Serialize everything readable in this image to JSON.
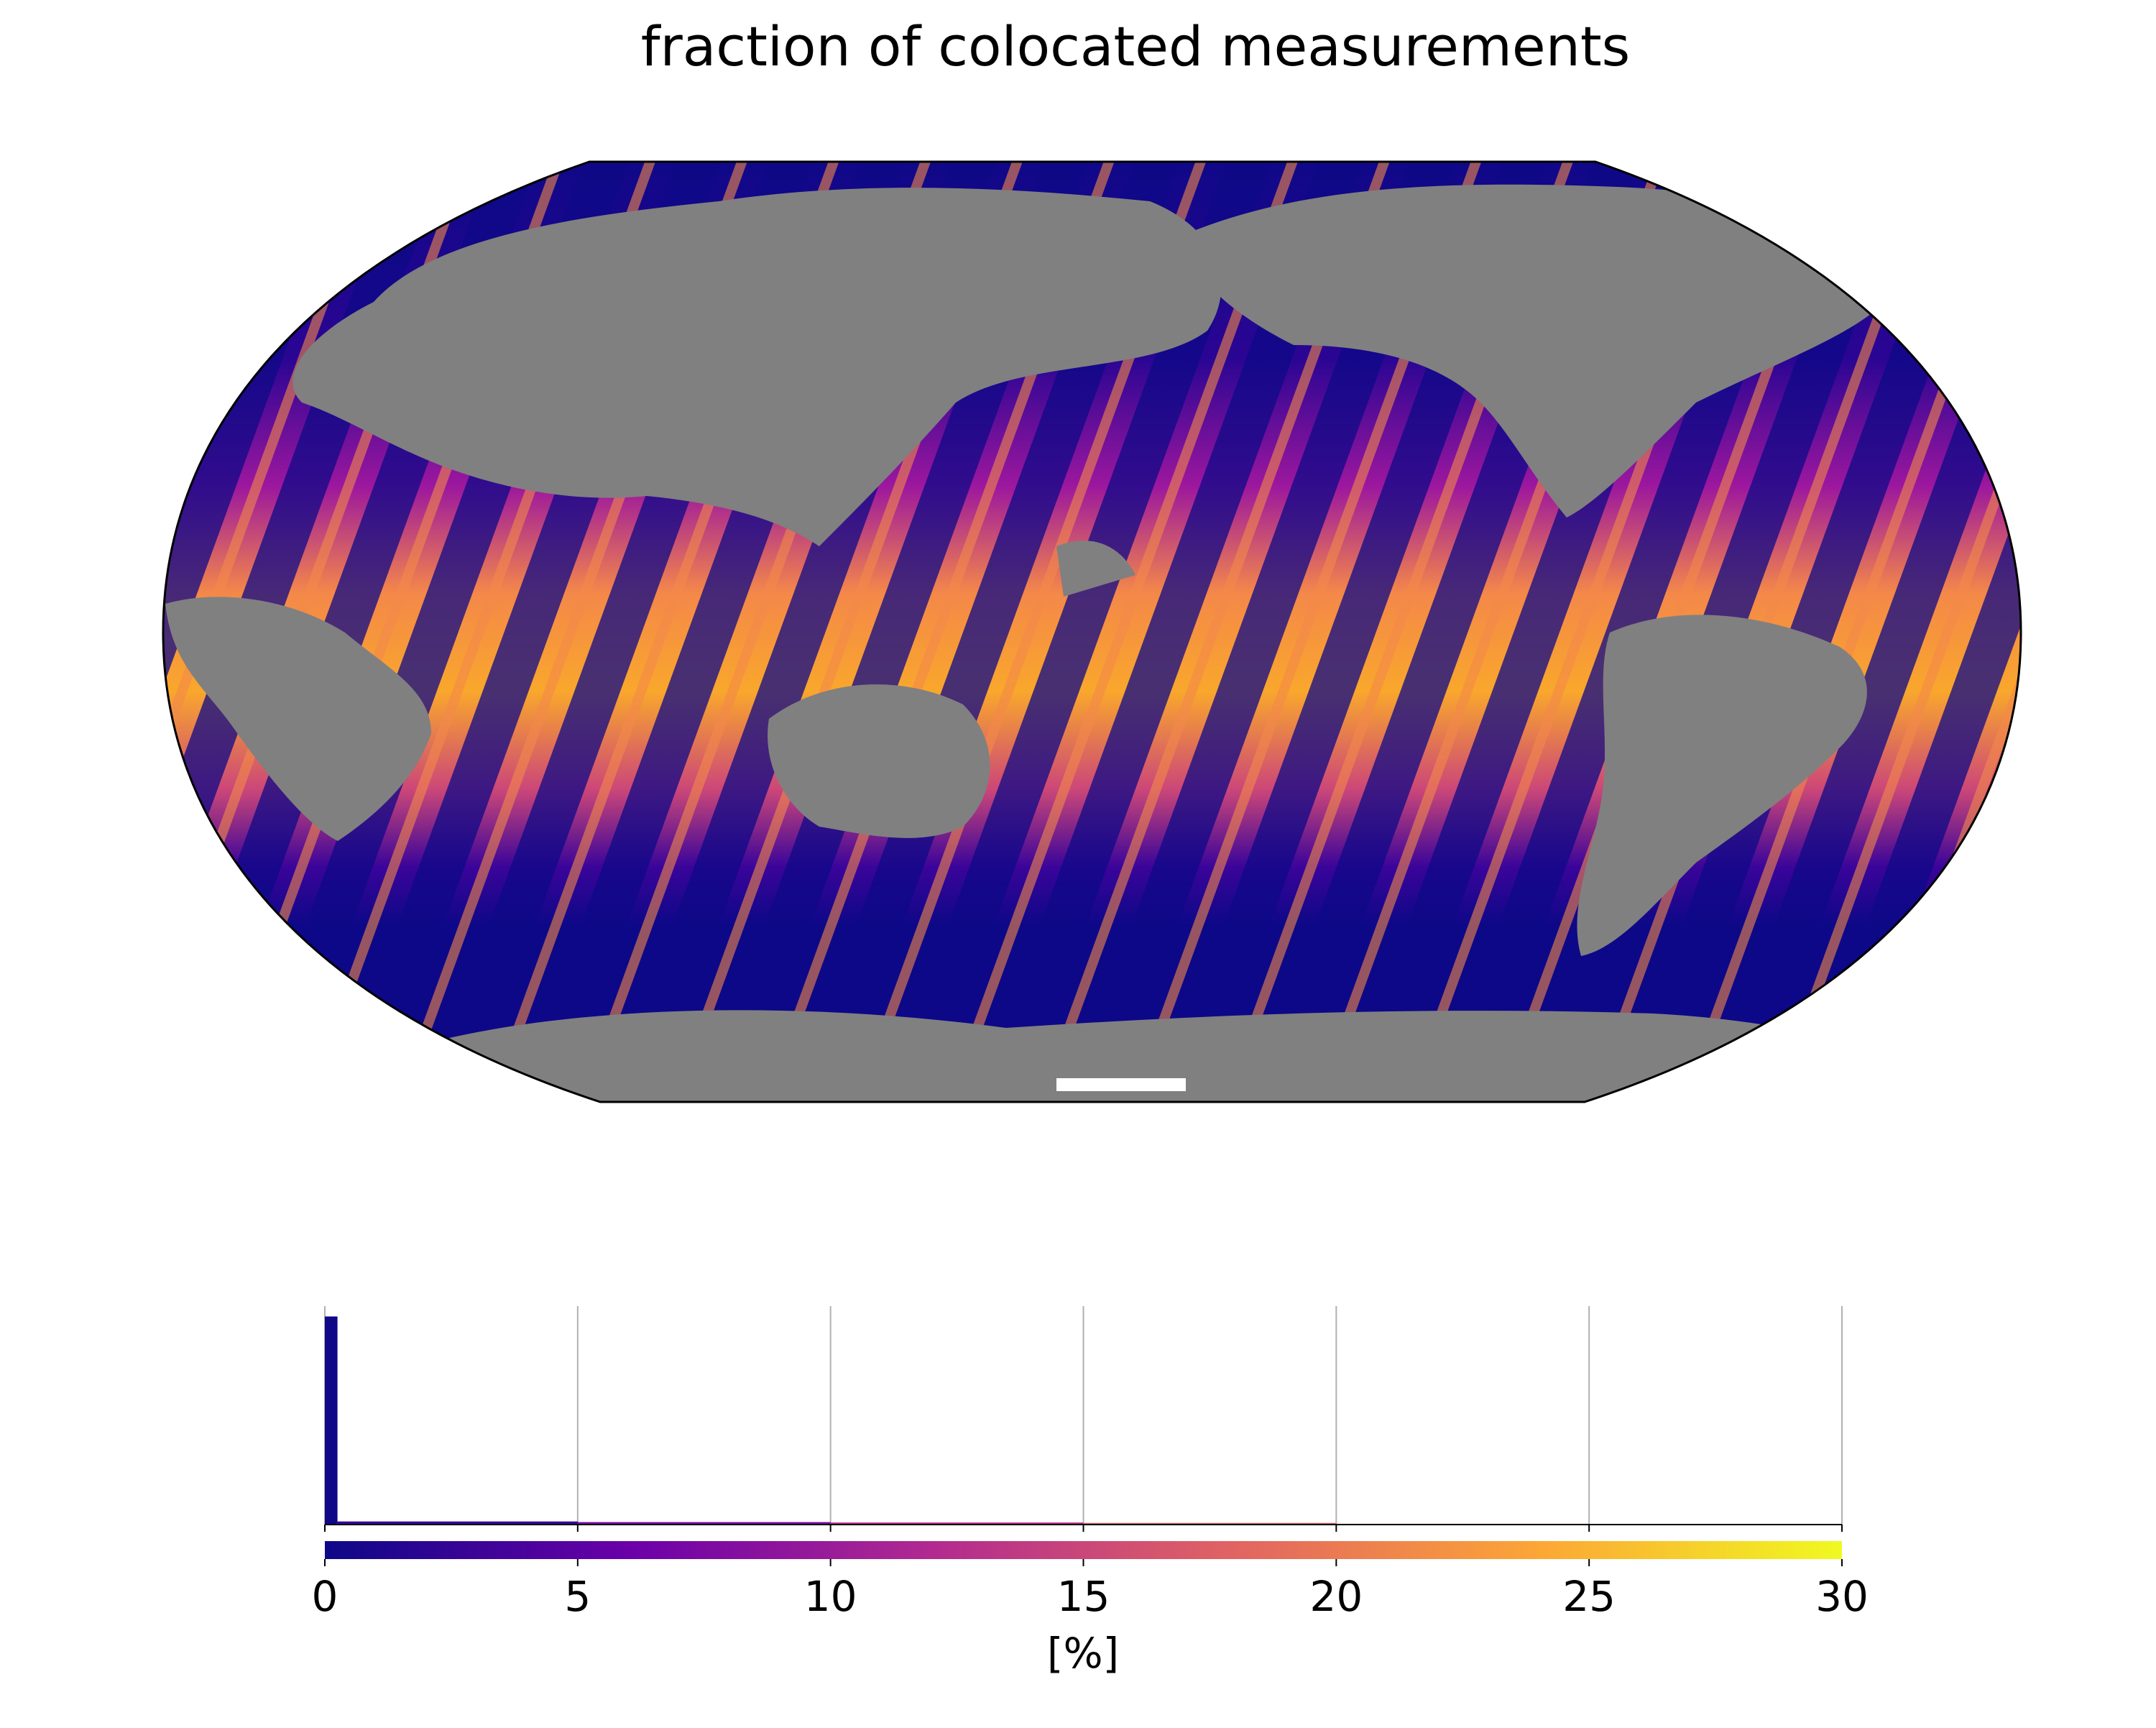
{
  "chart_data": {
    "type": "histogram",
    "title": "fraction of colocated measurements",
    "xlabel": "[%]",
    "bins": [
      0,
      0.25,
      5,
      10,
      15,
      20,
      25
    ],
    "counts": [
      100,
      1.5,
      1.2,
      1,
      0.8,
      0.4
    ],
    "xlim": [
      0,
      30
    ],
    "xticks": [
      0,
      5,
      10,
      15,
      20,
      25,
      30
    ],
    "ylim": [
      0,
      105
    ],
    "grid": true,
    "colormap": [
      "#0d0887",
      "#6a00a8",
      "#b12a90",
      "#e16462",
      "#fca636",
      "#f0f921"
    ]
  }
}
